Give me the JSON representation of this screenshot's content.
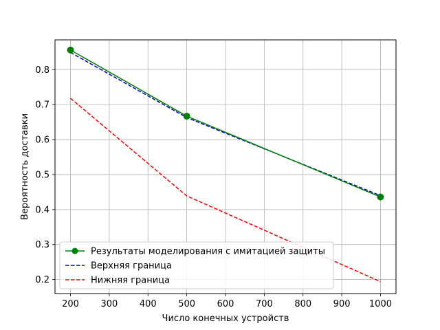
{
  "chart_data": {
    "type": "line",
    "title": "",
    "xlabel": "Число конечных устройств",
    "ylabel": "Вероятность доставки",
    "xlim": [
      160,
      1040
    ],
    "ylim": [
      0.16,
      0.885
    ],
    "xticks": [
      200,
      300,
      400,
      500,
      600,
      700,
      800,
      900,
      1000
    ],
    "yticks": [
      0.2,
      0.3,
      0.4,
      0.5,
      0.6,
      0.7,
      0.8
    ],
    "xtick_labels": [
      "200",
      "300",
      "400",
      "500",
      "600",
      "700",
      "800",
      "900",
      "1000"
    ],
    "ytick_labels": [
      "0.2",
      "0.3",
      "0.4",
      "0.5",
      "0.6",
      "0.7",
      "0.8"
    ],
    "grid": true,
    "legend_position": "lower-left",
    "series": [
      {
        "name": "Результаты моделирования с имитацией защиты",
        "x": [
          200,
          500,
          1000
        ],
        "y": [
          0.856,
          0.667,
          0.436
        ],
        "color": "#008000",
        "style": "solid",
        "marker": "circle"
      },
      {
        "name": "Верхняя граница",
        "x": [
          200,
          500,
          1000
        ],
        "y": [
          0.849,
          0.663,
          0.44
        ],
        "color": "#0000cc",
        "style": "dashed",
        "marker": "none"
      },
      {
        "name": "Нижняя граница",
        "x": [
          200,
          500,
          1000
        ],
        "y": [
          0.718,
          0.439,
          0.194
        ],
        "color": "#ff0000",
        "style": "dashed",
        "marker": "none"
      }
    ]
  }
}
